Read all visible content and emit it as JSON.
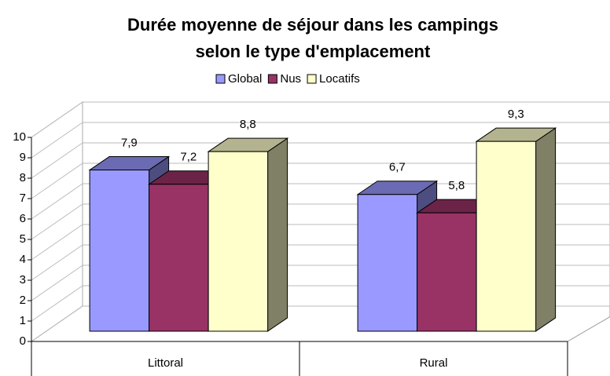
{
  "chart_data": {
    "type": "bar3d",
    "title": [
      "Durée moyenne de séjour dans les campings",
      "selon le type d'emplacement"
    ],
    "categories": [
      "Littoral",
      "Rural"
    ],
    "series": [
      {
        "name": "Global",
        "color": "#9999ff",
        "values": [
          7.9,
          6.7
        ],
        "value_labels": [
          "7,9",
          "6,7"
        ]
      },
      {
        "name": "Nus",
        "color": "#993366",
        "values": [
          7.2,
          5.8
        ],
        "value_labels": [
          "7,2",
          "5,8"
        ]
      },
      {
        "name": "Locatifs",
        "color": "#ffffcc",
        "values": [
          8.8,
          9.3
        ],
        "value_labels": [
          "8,8",
          "9,3"
        ]
      }
    ],
    "ylim": [
      0,
      10
    ],
    "yticks": [
      0,
      1,
      2,
      3,
      4,
      5,
      6,
      7,
      8,
      9,
      10
    ],
    "grid": true,
    "legend": "top"
  }
}
